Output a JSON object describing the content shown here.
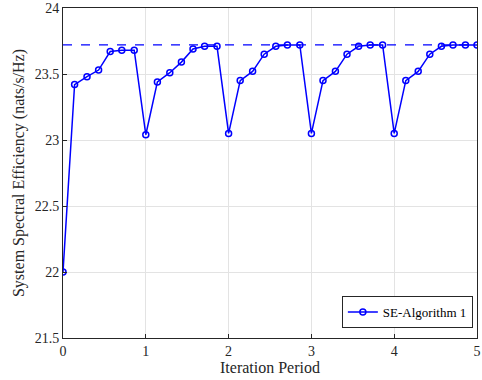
{
  "chart_data": {
    "type": "line",
    "x_label": "Iteration Period",
    "y_label": "System Spectral Efficiency (nats/s/Hz)",
    "x": [
      0,
      0.14,
      0.29,
      0.43,
      0.57,
      0.71,
      0.86,
      1,
      1.14,
      1.29,
      1.43,
      1.57,
      1.71,
      1.86,
      2,
      2.14,
      2.29,
      2.43,
      2.57,
      2.71,
      2.86,
      3,
      3.14,
      3.29,
      3.43,
      3.57,
      3.71,
      3.86,
      4,
      4.14,
      4.29,
      4.43,
      4.57,
      4.71,
      4.86,
      5
    ],
    "series": [
      {
        "name": "SE-Algorithm 1",
        "color": "#0000ff",
        "marker": "circle-open",
        "line_style": "solid",
        "values": [
          22.0,
          23.42,
          23.48,
          23.53,
          23.67,
          23.68,
          23.68,
          23.04,
          23.44,
          23.51,
          23.59,
          23.69,
          23.71,
          23.71,
          23.05,
          23.45,
          23.52,
          23.65,
          23.71,
          23.72,
          23.72,
          23.05,
          23.45,
          23.52,
          23.65,
          23.71,
          23.72,
          23.72,
          23.05,
          23.45,
          23.52,
          23.65,
          23.71,
          23.72,
          23.72,
          23.72
        ]
      }
    ],
    "reference_line": {
      "value": 23.72,
      "color": "#0000ff",
      "line_style": "dash"
    },
    "xlim": [
      0,
      5
    ],
    "xticks": [
      0,
      1,
      2,
      3,
      4,
      5
    ],
    "ylim": [
      21.5,
      24
    ],
    "yticks": [
      21.5,
      22,
      22.5,
      23,
      23.5,
      24
    ],
    "grid": true,
    "legend": "lower right"
  }
}
